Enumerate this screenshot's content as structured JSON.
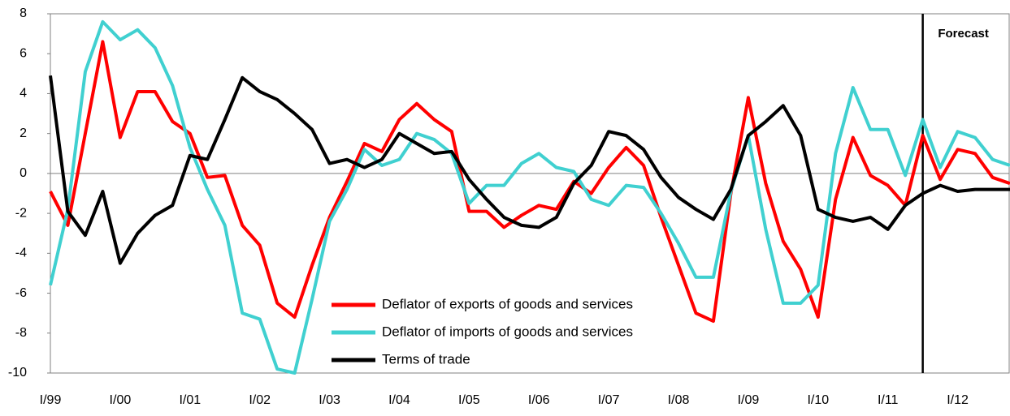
{
  "chart_data": {
    "type": "line",
    "categories": [
      "I/99",
      null,
      null,
      null,
      "I/00",
      null,
      null,
      null,
      "I/01",
      null,
      null,
      null,
      "I/02",
      null,
      null,
      null,
      "I/03",
      null,
      null,
      null,
      "I/04",
      null,
      null,
      null,
      "I/05",
      null,
      null,
      null,
      "I/06",
      null,
      null,
      null,
      "I/07",
      null,
      null,
      null,
      "I/08",
      null,
      null,
      null,
      "I/09",
      null,
      null,
      null,
      "I/10",
      null,
      null,
      null,
      "I/11",
      null,
      null,
      null,
      "I/12",
      null,
      null,
      null
    ],
    "series": [
      {
        "name": "Deflator of exports of goods and services",
        "color": "#ff0000",
        "values": [
          -0.9,
          -2.6,
          2.0,
          6.6,
          1.8,
          4.1,
          4.1,
          2.6,
          2.0,
          -0.2,
          -0.1,
          -2.6,
          -3.6,
          -6.5,
          -7.2,
          -4.6,
          -2.2,
          -0.4,
          1.5,
          1.1,
          2.7,
          3.5,
          2.7,
          2.1,
          -1.9,
          -1.9,
          -2.7,
          -2.1,
          -1.6,
          -1.8,
          -0.4,
          -1.0,
          0.3,
          1.3,
          0.4,
          -2.2,
          -4.6,
          -7.0,
          -7.4,
          -1.0,
          3.8,
          -0.5,
          -3.4,
          -4.8,
          -7.2,
          -1.3,
          1.8,
          -0.1,
          -0.6,
          -1.6,
          1.9,
          -0.3,
          1.2,
          1.0,
          -0.2,
          -0.5
        ]
      },
      {
        "name": "Deflator of imports of goods and services",
        "color": "#40d0d0",
        "values": [
          -5.6,
          -1.8,
          5.1,
          7.6,
          6.7,
          7.2,
          6.3,
          4.4,
          1.3,
          -0.8,
          -2.6,
          -7.0,
          -7.3,
          -9.8,
          -10.0,
          -6.3,
          -2.4,
          -0.8,
          1.2,
          0.4,
          0.7,
          2.0,
          1.7,
          1.0,
          -1.5,
          -0.6,
          -0.6,
          0.5,
          1.0,
          0.3,
          0.1,
          -1.3,
          -1.6,
          -0.6,
          -0.7,
          -2.0,
          -3.5,
          -5.2,
          -5.2,
          -0.9,
          1.9,
          -2.8,
          -6.5,
          -6.5,
          -5.6,
          1.0,
          4.3,
          2.2,
          2.2,
          -0.1,
          2.7,
          0.3,
          2.1,
          1.8,
          0.7,
          0.4
        ]
      },
      {
        "name": "Terms of trade",
        "color": "#000000",
        "values": [
          4.9,
          -1.9,
          -3.1,
          -0.9,
          -4.5,
          -3.0,
          -2.1,
          -1.6,
          0.9,
          0.7,
          2.7,
          4.8,
          4.1,
          3.7,
          3.0,
          2.2,
          0.5,
          0.7,
          0.3,
          0.7,
          2.0,
          1.5,
          1.0,
          1.1,
          -0.3,
          -1.3,
          -2.2,
          -2.6,
          -2.7,
          -2.2,
          -0.5,
          0.4,
          2.1,
          1.9,
          1.2,
          -0.2,
          -1.2,
          -1.8,
          -2.3,
          -0.8,
          1.9,
          2.6,
          3.4,
          1.9,
          -1.8,
          -2.2,
          -2.4,
          -2.2,
          -2.8,
          -1.6,
          -1.0,
          -0.6,
          -0.9,
          -0.8,
          -0.8,
          -0.8
        ]
      }
    ],
    "ylim": [
      -10,
      8
    ],
    "yticks": [
      -10,
      -8,
      -6,
      -4,
      -2,
      0,
      2,
      4,
      6,
      8
    ],
    "zero_line": true,
    "grid": false,
    "annotation": {
      "text": "Forecast",
      "x": 50
    }
  }
}
